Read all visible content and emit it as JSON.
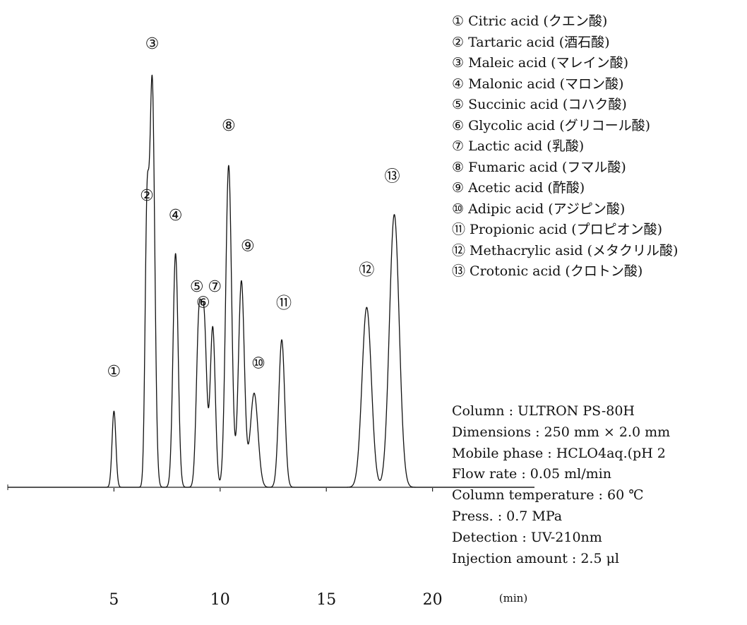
{
  "chart_data": {
    "type": "line",
    "x_unit_label": "(min)",
    "x_ticks": [
      5,
      10,
      15,
      20
    ],
    "xlim": [
      0,
      24.8
    ],
    "ylim": [
      0,
      100
    ],
    "series": [
      {
        "peaks": [
          {
            "id": "①",
            "rt": 5.0,
            "height": 17.4,
            "width": 0.09
          },
          {
            "id": "②",
            "rt": 6.55,
            "height": 57.4,
            "width": 0.09
          },
          {
            "id": "③",
            "rt": 6.8,
            "height": 92.8,
            "width": 0.12
          },
          {
            "id": "④",
            "rt": 7.9,
            "height": 53.4,
            "width": 0.12
          },
          {
            "id": "⑤",
            "rt": 9.0,
            "height": 37.1,
            "width": 0.12
          },
          {
            "id": "⑥",
            "rt": 9.25,
            "height": 36.0,
            "width": 0.12
          },
          {
            "id": "⑦",
            "rt": 9.65,
            "height": 36.6,
            "width": 0.12
          },
          {
            "id": "⑧",
            "rt": 10.4,
            "height": 73.5,
            "width": 0.14
          },
          {
            "id": "⑨",
            "rt": 11.0,
            "height": 47.1,
            "width": 0.14
          },
          {
            "id": "⑩",
            "rt": 11.6,
            "height": 21.5,
            "width": 0.18
          },
          {
            "id": "⑪",
            "rt": 12.9,
            "height": 33.7,
            "width": 0.14
          },
          {
            "id": "⑫",
            "rt": 16.9,
            "height": 41.1,
            "width": 0.22
          },
          {
            "id": "⑬",
            "rt": 18.2,
            "height": 62.3,
            "width": 0.23
          }
        ]
      }
    ],
    "peak_labels": [
      {
        "text": "①",
        "rt": 5.0,
        "y": 26.4
      },
      {
        "text": "②",
        "rt": 6.55,
        "y": 66.5
      },
      {
        "text": "③",
        "rt": 6.8,
        "y": 101.2
      },
      {
        "text": "④",
        "rt": 7.9,
        "y": 62.0
      },
      {
        "text": "⑤",
        "rt": 8.9,
        "y": 45.7
      },
      {
        "text": "⑥",
        "rt": 9.2,
        "y": 42.1
      },
      {
        "text": "⑦",
        "rt": 9.75,
        "y": 45.7
      },
      {
        "text": "⑧",
        "rt": 10.4,
        "y": 82.5
      },
      {
        "text": "⑨",
        "rt": 11.3,
        "y": 55.0
      },
      {
        "text": "⑩",
        "rt": 11.8,
        "y": 28.2
      },
      {
        "text": "⑪",
        "rt": 13.0,
        "y": 41.9
      },
      {
        "text": "⑫",
        "rt": 16.9,
        "y": 49.5
      },
      {
        "text": "⑬",
        "rt": 18.1,
        "y": 70.9
      }
    ]
  },
  "legend": [
    "① Citric acid (クエン酸)",
    "② Tartaric acid (酒石酸)",
    "③ Maleic acid (マレイン酸)",
    "④ Malonic acid (マロン酸)",
    "⑤ Succinic acid (コハク酸)",
    "⑥ Glycolic acid (グリコール酸)",
    "⑦ Lactic acid (乳酸)",
    "⑧ Fumaric acid (フマル酸)",
    "⑨ Acetic acid (酢酸)",
    "⑩ Adipic acid (アジピン酸)",
    "⑪ Propionic acid (プロピオン酸)",
    "⑫ Methacrylic asid (メタクリル酸)",
    "⑬ Crotonic acid (クロトン酸)"
  ],
  "conditions": [
    "Column : ULTRON PS-80H",
    "Dimensions : 250 mm × 2.0 mm",
    "Mobile phase : HCLO4aq.(pH 2",
    "Flow rate : 0.05 ml/min",
    "Column temperature : 60 ℃",
    "Press. : 0.7 MPa",
    "Detection : UV-210nm",
    "Injection amount : 2.5 μl"
  ]
}
